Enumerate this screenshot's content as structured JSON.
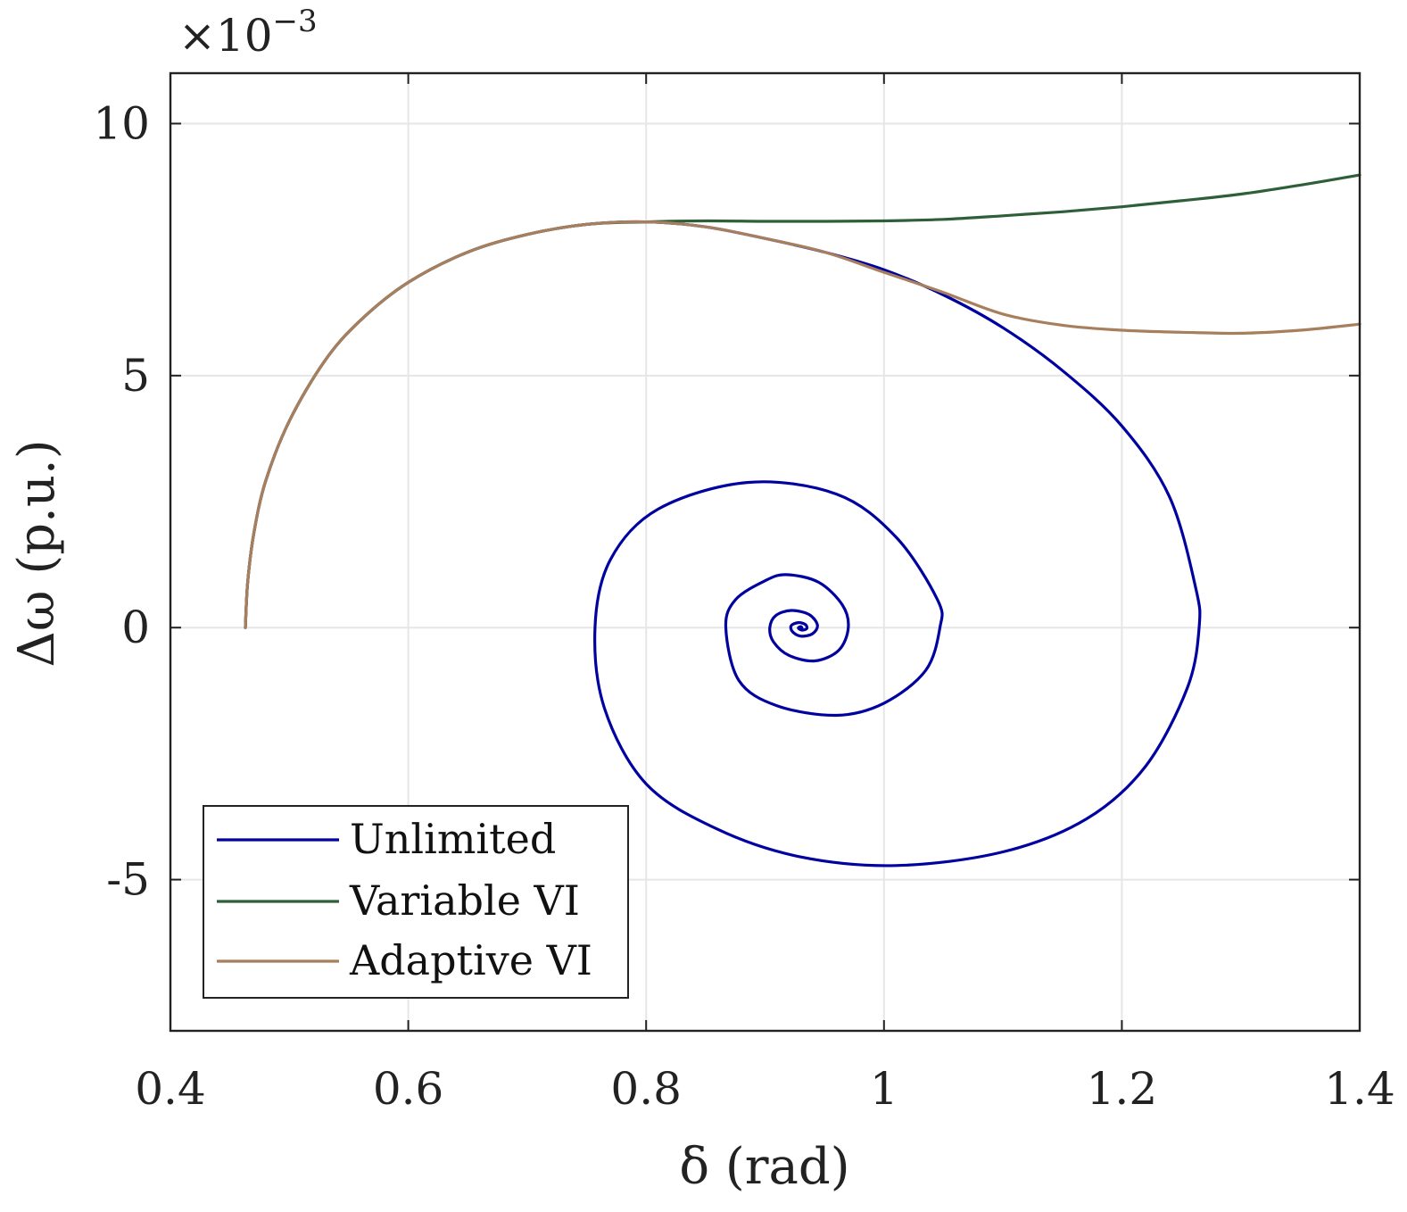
{
  "chart_data": {
    "type": "line",
    "title": "",
    "xlabel": "δ (rad)",
    "ylabel": "Δω (p.u.)",
    "xlim": [
      0.4,
      1.4
    ],
    "ylim": [
      -8,
      11
    ],
    "y_multiplier": {
      "base": "×10",
      "exponent": "−3"
    },
    "grid": true,
    "legend_position": "bottom-left",
    "x_ticks": [
      {
        "value": 0.4,
        "label": "0.4"
      },
      {
        "value": 0.6,
        "label": "0.6"
      },
      {
        "value": 0.8,
        "label": "0.8"
      },
      {
        "value": 1.0,
        "label": "1"
      },
      {
        "value": 1.2,
        "label": "1.2"
      },
      {
        "value": 1.4,
        "label": "1.4"
      }
    ],
    "y_ticks": [
      {
        "value": -5,
        "label": "-5"
      },
      {
        "value": 0,
        "label": "0"
      },
      {
        "value": 5,
        "label": "5"
      },
      {
        "value": 10,
        "label": "10"
      }
    ],
    "series": [
      {
        "name": "Unlimited",
        "color": "#0000a0",
        "spiral": {
          "center": [
            0.93,
            0.0
          ],
          "start": [
            0.463,
            0.0
          ],
          "decay": 0.5,
          "turns": 8,
          "start_vertical_extent": 16.5,
          "start_horizontal_extent": 0.41,
          "y_bias": 0.05,
          "x_bias": 0.005
        }
      },
      {
        "name": "Variable VI",
        "color": "#2f5f38",
        "x": [
          0.463,
          0.465,
          0.47,
          0.48,
          0.5,
          0.53,
          0.56,
          0.6,
          0.65,
          0.7,
          0.75,
          0.8,
          0.85,
          0.9,
          0.95,
          1.0,
          1.05,
          1.1,
          1.15,
          1.2,
          1.25,
          1.3,
          1.35,
          1.4
        ],
        "y": [
          0.0,
          0.9,
          1.85,
          2.9,
          4.1,
          5.3,
          6.1,
          6.85,
          7.45,
          7.8,
          8.0,
          8.05,
          8.07,
          8.06,
          8.06,
          8.07,
          8.1,
          8.17,
          8.25,
          8.35,
          8.47,
          8.6,
          8.78,
          8.98
        ]
      },
      {
        "name": "Adaptive VI",
        "color": "#a87f5d",
        "x": [
          0.463,
          0.465,
          0.47,
          0.48,
          0.5,
          0.53,
          0.56,
          0.6,
          0.65,
          0.7,
          0.75,
          0.8,
          0.85,
          0.9,
          0.95,
          1.0,
          1.05,
          1.1,
          1.15,
          1.2,
          1.25,
          1.3,
          1.35,
          1.4
        ],
        "y": [
          0.0,
          0.9,
          1.85,
          2.9,
          4.1,
          5.3,
          6.1,
          6.85,
          7.45,
          7.8,
          8.0,
          8.05,
          7.95,
          7.72,
          7.45,
          7.05,
          6.65,
          6.22,
          6.0,
          5.9,
          5.86,
          5.84,
          5.9,
          6.02
        ]
      }
    ]
  }
}
